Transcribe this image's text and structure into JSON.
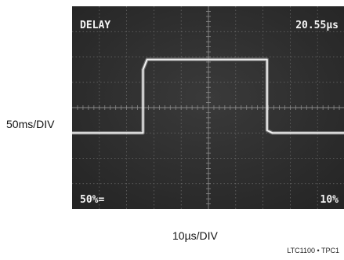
{
  "chart_data": {
    "type": "line",
    "title": "",
    "xlabel": "10µs/DIV",
    "ylabel": "50ms/DIV",
    "readouts": {
      "top_left": "DELAY",
      "top_right": "20.55µs",
      "bottom_left": "50%=",
      "bottom_right": "10%"
    },
    "x_divisions": 10,
    "y_divisions": 8,
    "grid": true,
    "series": [
      {
        "x": [
          0,
          2.6,
          2.6,
          2.75,
          7.15,
          7.15,
          7.35,
          10
        ],
        "y": [
          -1.0,
          -1.0,
          1.5,
          1.9,
          1.9,
          -0.9,
          -1.0,
          -1.0
        ],
        "color": "#f2f2f2"
      }
    ]
  },
  "figure_id": "LTC1100 • TPC1"
}
